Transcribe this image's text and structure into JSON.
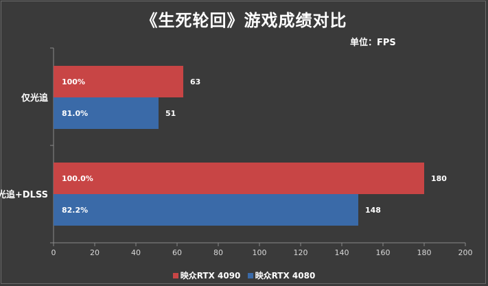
{
  "chart_data": {
    "type": "bar",
    "orientation": "horizontal",
    "title": "《生死轮回》游戏成绩对比",
    "unit_label": "单位：FPS",
    "categories": [
      "仅光追",
      "光追+DLSS"
    ],
    "series": [
      {
        "name": "映众RTX 4090",
        "color": "#c84545",
        "values": [
          63,
          180
        ],
        "labels": [
          "100%",
          "100.0%"
        ]
      },
      {
        "name": "映众RTX 4080",
        "color": "#3a6aa8",
        "values": [
          51,
          148
        ],
        "labels": [
          "81.0%",
          "82.2%"
        ]
      }
    ],
    "xlim": [
      0,
      200
    ],
    "xticks": [
      0,
      20,
      40,
      60,
      80,
      100,
      120,
      140,
      160,
      180,
      200
    ],
    "grid": false,
    "legend_position": "bottom"
  }
}
